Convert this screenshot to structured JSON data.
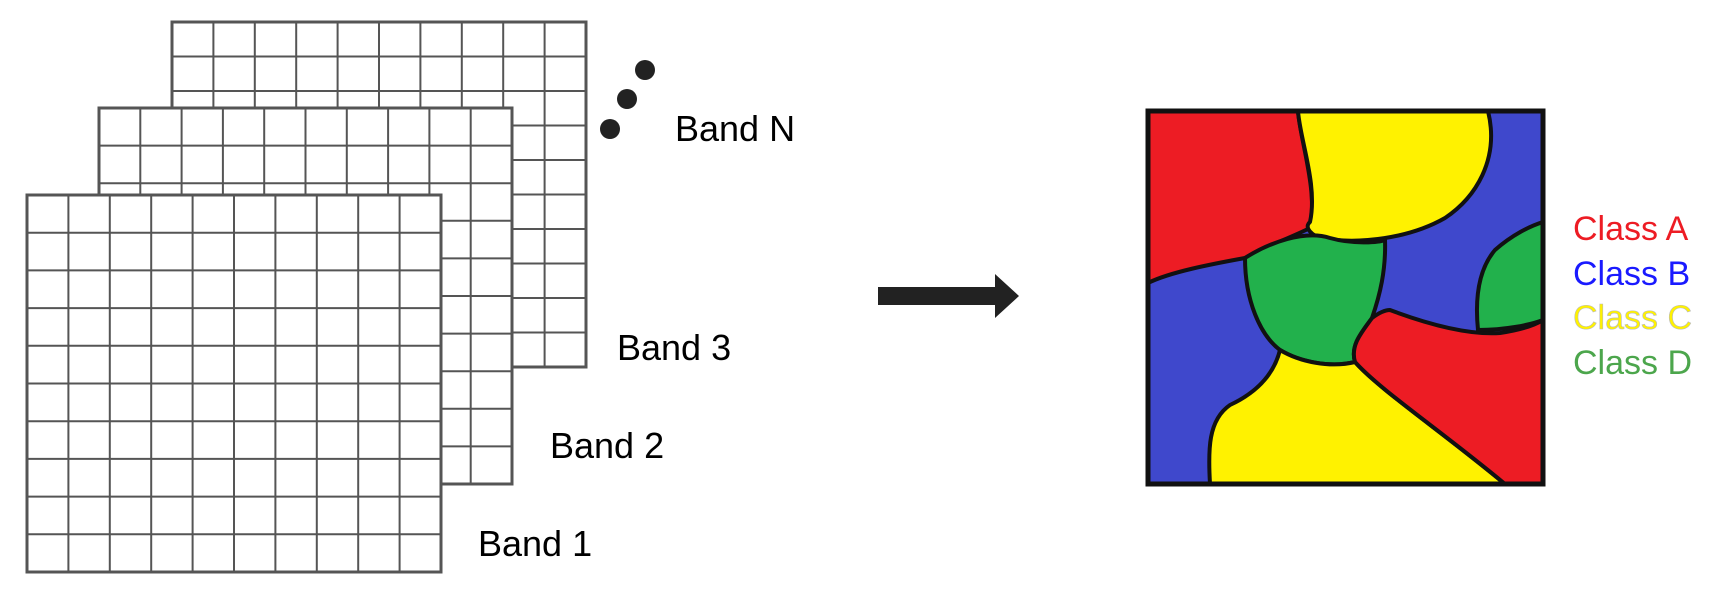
{
  "bands": {
    "labels": [
      "Band 1",
      "Band 2",
      "Band 3",
      "Band N"
    ],
    "grid_rows": 10,
    "grid_cols": 10
  },
  "legend": {
    "items": [
      {
        "label": "Class A",
        "color": "#ed1c24"
      },
      {
        "label": "Class B",
        "color": "#1a1aff"
      },
      {
        "label": "Class C",
        "color": "#fff200"
      },
      {
        "label": "Class D",
        "color": "#4ca64c"
      }
    ]
  },
  "map_colors": {
    "red": "#ed1c24",
    "blue": "#3f48cc",
    "yellow": "#fff200",
    "green": "#22b14c"
  },
  "icons": {
    "ellipsis": "vertical-ellipsis-dots",
    "arrow": "right-arrow"
  }
}
